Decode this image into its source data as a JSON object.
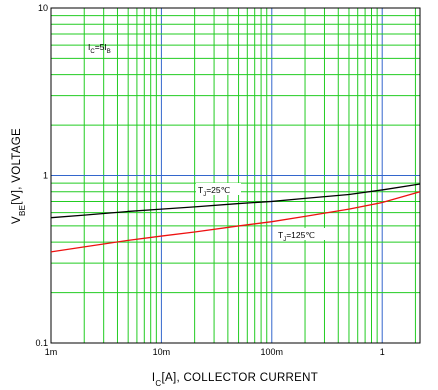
{
  "chart_data": {
    "type": "line",
    "x_scale": "log",
    "y_scale": "log",
    "xlim": [
      0.001,
      2.2
    ],
    "ylim": [
      0.1,
      10
    ],
    "x_ticks": [
      {
        "value": 0.001,
        "label": "1m"
      },
      {
        "value": 0.01,
        "label": "10m"
      },
      {
        "value": 0.1,
        "label": "100m"
      },
      {
        "value": 1,
        "label": "1"
      }
    ],
    "y_ticks": [
      {
        "value": 0.1,
        "label": "0.1"
      },
      {
        "value": 1,
        "label": "1"
      },
      {
        "value": 10,
        "label": "10"
      }
    ],
    "xlabel": {
      "main": "I",
      "sub": "C",
      "rest": "[A], COLLECTOR CURRENT"
    },
    "ylabel": {
      "main": "V",
      "sub": "BE",
      "rest": "[V], VOLTAGE"
    },
    "grid": true,
    "grid_color": "#22cc22",
    "major_grid_color": "#3366cc",
    "annotations": {
      "condition": {
        "main": "I",
        "sub1": "C",
        "mid": "=5I",
        "sub2": "B"
      },
      "series_label_25": {
        "main": "T",
        "sub": "J",
        "rest": "=25℃"
      },
      "series_label_125": {
        "main": "T",
        "sub": "J",
        "rest": "=125℃"
      }
    },
    "series": [
      {
        "color": "#000000",
        "x": [
          0.001,
          0.002,
          0.005,
          0.01,
          0.02,
          0.05,
          0.1,
          0.2,
          0.5,
          1,
          2.2
        ],
        "y": [
          0.56,
          0.58,
          0.61,
          0.63,
          0.65,
          0.68,
          0.7,
          0.73,
          0.77,
          0.82,
          0.89
        ]
      },
      {
        "color": "#ee1111",
        "x": [
          0.001,
          0.002,
          0.005,
          0.01,
          0.02,
          0.05,
          0.1,
          0.2,
          0.5,
          1,
          2.2
        ],
        "y": [
          0.35,
          0.375,
          0.41,
          0.435,
          0.46,
          0.5,
          0.53,
          0.57,
          0.63,
          0.69,
          0.8
        ]
      }
    ]
  }
}
